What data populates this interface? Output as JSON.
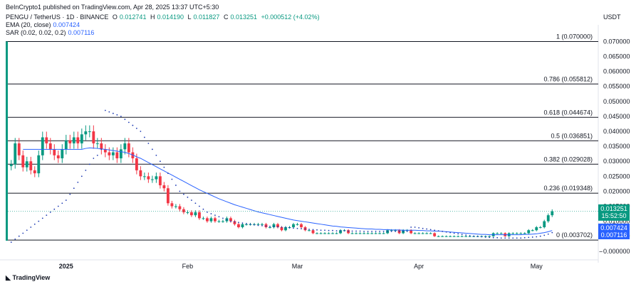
{
  "header": {
    "published": "BeInCrypto1 published on TradingView.com, Apr 28, 2025 13:37 UTC+5:30",
    "symbol": "PENGU / TetherUS · 1D · BINANCE",
    "open_label": "O",
    "open": "0.012741",
    "high_label": "H",
    "high": "0.014190",
    "low_label": "L",
    "low": "0.011827",
    "close_label": "C",
    "close": "0.013251",
    "change": "+0.000512 (+4.02%)",
    "ema_label": "EMA (20, close)",
    "ema_value": "0.007424",
    "sar_label": "SAR (0.02, 0.02, 0.2)",
    "sar_value": "0.007116"
  },
  "currency": "USDT",
  "footer_logo": "TradingView",
  "colors": {
    "up": "#089981",
    "down": "#f23645",
    "ema": "#2962ff",
    "sar": "#1e3bb3",
    "fib": "#131722"
  },
  "chart_data": {
    "type": "candlestick",
    "title": "PENGU / TetherUS · 1D · BINANCE",
    "ylim": [
      -0.001,
      0.072
    ],
    "y_ticks": [
      "0.070000",
      "0.065000",
      "0.060000",
      "0.055000",
      "0.050000",
      "0.045000",
      "0.040000",
      "0.035000",
      "0.030000",
      "0.025000",
      "0.020000",
      "0.015000",
      "0.010000",
      "0.005000",
      "0.000000"
    ],
    "y_tick_values": [
      0.07,
      0.065,
      0.06,
      0.055,
      0.05,
      0.045,
      0.04,
      0.035,
      0.03,
      0.025,
      0.02,
      0.015,
      0.01,
      0.005,
      0.0
    ],
    "x_ticks": [
      {
        "label": "2025",
        "index": 14
      },
      {
        "label": "Feb",
        "index": 45
      },
      {
        "label": "Mar",
        "index": 73
      },
      {
        "label": "Apr",
        "index": 104
      },
      {
        "label": "May",
        "index": 134
      }
    ],
    "fib_levels": [
      {
        "label": "1 (0.070000)",
        "value": 0.07
      },
      {
        "label": "0.786 (0.055812)",
        "value": 0.055812
      },
      {
        "label": "0.618 (0.044674)",
        "value": 0.044674
      },
      {
        "label": "0.5 (0.036851)",
        "value": 0.036851
      },
      {
        "label": "0.382 (0.029028)",
        "value": 0.029028
      },
      {
        "label": "0.236 (0.019348)",
        "value": 0.019348
      },
      {
        "label": "0 (0.003702)",
        "value": 0.003702
      }
    ],
    "price_labels": {
      "close": "0.013251",
      "countdown": "15:52:50",
      "ema": "0.007424",
      "sar": "0.007116"
    },
    "close": [
      0.029,
      0.036,
      0.032,
      0.028,
      0.03,
      0.027,
      0.026,
      0.032,
      0.038,
      0.036,
      0.034,
      0.032,
      0.031,
      0.034,
      0.037,
      0.036,
      0.038,
      0.036,
      0.039,
      0.04,
      0.04,
      0.036,
      0.036,
      0.034,
      0.033,
      0.032,
      0.033,
      0.031,
      0.034,
      0.036,
      0.033,
      0.031,
      0.027,
      0.025,
      0.025,
      0.024,
      0.024,
      0.025,
      0.022,
      0.021,
      0.016,
      0.015,
      0.015,
      0.014,
      0.013,
      0.013,
      0.012,
      0.013,
      0.011,
      0.011,
      0.01,
      0.011,
      0.01,
      0.01,
      0.01,
      0.011,
      0.01,
      0.009,
      0.008,
      0.009,
      0.009,
      0.009,
      0.009,
      0.009,
      0.009,
      0.008,
      0.008,
      0.009,
      0.008,
      0.007,
      0.008,
      0.008,
      0.009,
      0.009,
      0.008,
      0.007,
      0.007,
      0.006,
      0.006,
      0.006,
      0.006,
      0.006,
      0.006,
      0.006,
      0.007,
      0.007,
      0.006,
      0.006,
      0.006,
      0.006,
      0.006,
      0.006,
      0.006,
      0.006,
      0.006,
      0.006,
      0.007,
      0.007,
      0.007,
      0.006,
      0.007,
      0.007,
      0.006,
      0.006,
      0.006,
      0.006,
      0.006,
      0.006,
      0.005,
      0.005,
      0.005,
      0.005,
      0.005,
      0.005,
      0.005,
      0.005,
      0.005,
      0.005,
      0.005,
      0.005,
      0.005,
      0.005,
      0.005,
      0.006,
      0.006,
      0.006,
      0.005,
      0.006,
      0.006,
      0.006,
      0.006,
      0.006,
      0.007,
      0.007,
      0.008,
      0.008,
      0.01,
      0.012,
      0.0133
    ],
    "ema": [
      0.034,
      0.034,
      0.034,
      0.034,
      0.034,
      0.034,
      0.034,
      0.034,
      0.034,
      0.034,
      0.034,
      0.034,
      0.034,
      0.034,
      0.034,
      0.034,
      0.0343,
      0.0345,
      0.0344,
      0.0343,
      0.0341,
      0.034,
      0.0338,
      0.0336,
      0.0334,
      0.0332,
      0.033,
      0.0326,
      0.0321,
      0.0315,
      0.031,
      0.0303,
      0.0296,
      0.0289,
      0.0282,
      0.0275,
      0.0268,
      0.0261,
      0.0254,
      0.0247,
      0.024,
      0.0233,
      0.0226,
      0.0219,
      0.0212,
      0.0205,
      0.0199,
      0.0193,
      0.0187,
      0.0181,
      0.0175,
      0.017,
      0.0165,
      0.016,
      0.0155,
      0.0151,
      0.0147,
      0.0143,
      0.0139,
      0.0135,
      0.0131,
      0.0128,
      0.0125,
      0.0122,
      0.0119,
      0.0116,
      0.0113,
      0.011,
      0.0107,
      0.0104,
      0.0102,
      0.01,
      0.0098,
      0.0096,
      0.0094,
      0.0092,
      0.009,
      0.0088,
      0.0086,
      0.0084,
      0.0083,
      0.0081,
      0.008,
      0.0079,
      0.0078,
      0.0077,
      0.0076,
      0.0075,
      0.0074,
      0.0074,
      0.0073,
      0.0073,
      0.0072,
      0.0072,
      0.0071,
      0.0071,
      0.0071,
      0.007,
      0.007,
      0.007,
      0.007,
      0.0069,
      0.0069,
      0.0068,
      0.0068,
      0.0067,
      0.0067,
      0.0066,
      0.0065,
      0.0064,
      0.0063,
      0.0062,
      0.0061,
      0.006,
      0.0059,
      0.0058,
      0.0057,
      0.0056,
      0.0056,
      0.0055,
      0.0055,
      0.0055,
      0.0055,
      0.0055,
      0.0055,
      0.0055,
      0.0055,
      0.0055,
      0.0056,
      0.0056,
      0.0057,
      0.0058,
      0.006,
      0.0062,
      0.0065,
      0.0069,
      0.0074
    ],
    "sar": [
      0.003,
      0.004,
      0.005,
      0.006,
      0.007,
      0.008,
      0.009,
      0.01,
      0.011,
      0.012,
      0.013,
      0.014,
      0.015,
      0.016,
      0.017,
      0.019,
      0.021,
      0.023,
      0.025,
      0.027,
      0.029,
      0.031,
      0.032,
      0.034,
      0.047,
      0.0465,
      0.046,
      0.0455,
      0.045,
      0.044,
      0.043,
      0.042,
      0.041,
      0.04,
      0.038,
      0.036,
      0.034,
      0.032,
      0.03,
      0.028,
      0.026,
      0.024,
      0.022,
      0.02,
      0.019,
      0.018,
      0.017,
      0.016,
      0.015,
      0.014,
      0.013,
      0.0125,
      0.012,
      0.0115,
      0.011,
      0.0105,
      0.01,
      0.0098,
      0.0096,
      0.0094,
      0.0092,
      0.009,
      0.0088,
      0.0086,
      0.0085,
      0.0084,
      0.0083,
      0.0082,
      0.0081,
      0.008,
      0.0079,
      0.0078,
      0.0077,
      0.0076,
      0.0075,
      0.0074,
      0.0073,
      0.0072,
      0.0071,
      0.007,
      0.007,
      0.0069,
      0.0069,
      0.0068,
      0.0068,
      0.0068,
      0.0067,
      0.0067,
      0.0067,
      0.0067,
      0.0066,
      0.0066,
      0.0066,
      0.0066,
      0.0066,
      0.0066,
      0.0066,
      0.0066,
      0.0066,
      0.0066,
      0.0066,
      0.0066,
      0.008,
      0.008,
      0.0078,
      0.0076,
      0.0074,
      0.0072,
      0.007,
      0.0068,
      0.0066,
      0.0064,
      0.0062,
      0.006,
      0.0058,
      0.0056,
      0.0054,
      0.0052,
      0.005,
      0.0049,
      0.0048,
      0.0047,
      0.0046,
      0.0045,
      0.0045,
      0.0044,
      0.0044,
      0.0044,
      0.0044,
      0.0044,
      0.0044,
      0.0045,
      0.0046,
      0.0047,
      0.0048,
      0.005,
      0.0053,
      0.0057,
      0.0062,
      0.0067,
      0.0071
    ]
  }
}
